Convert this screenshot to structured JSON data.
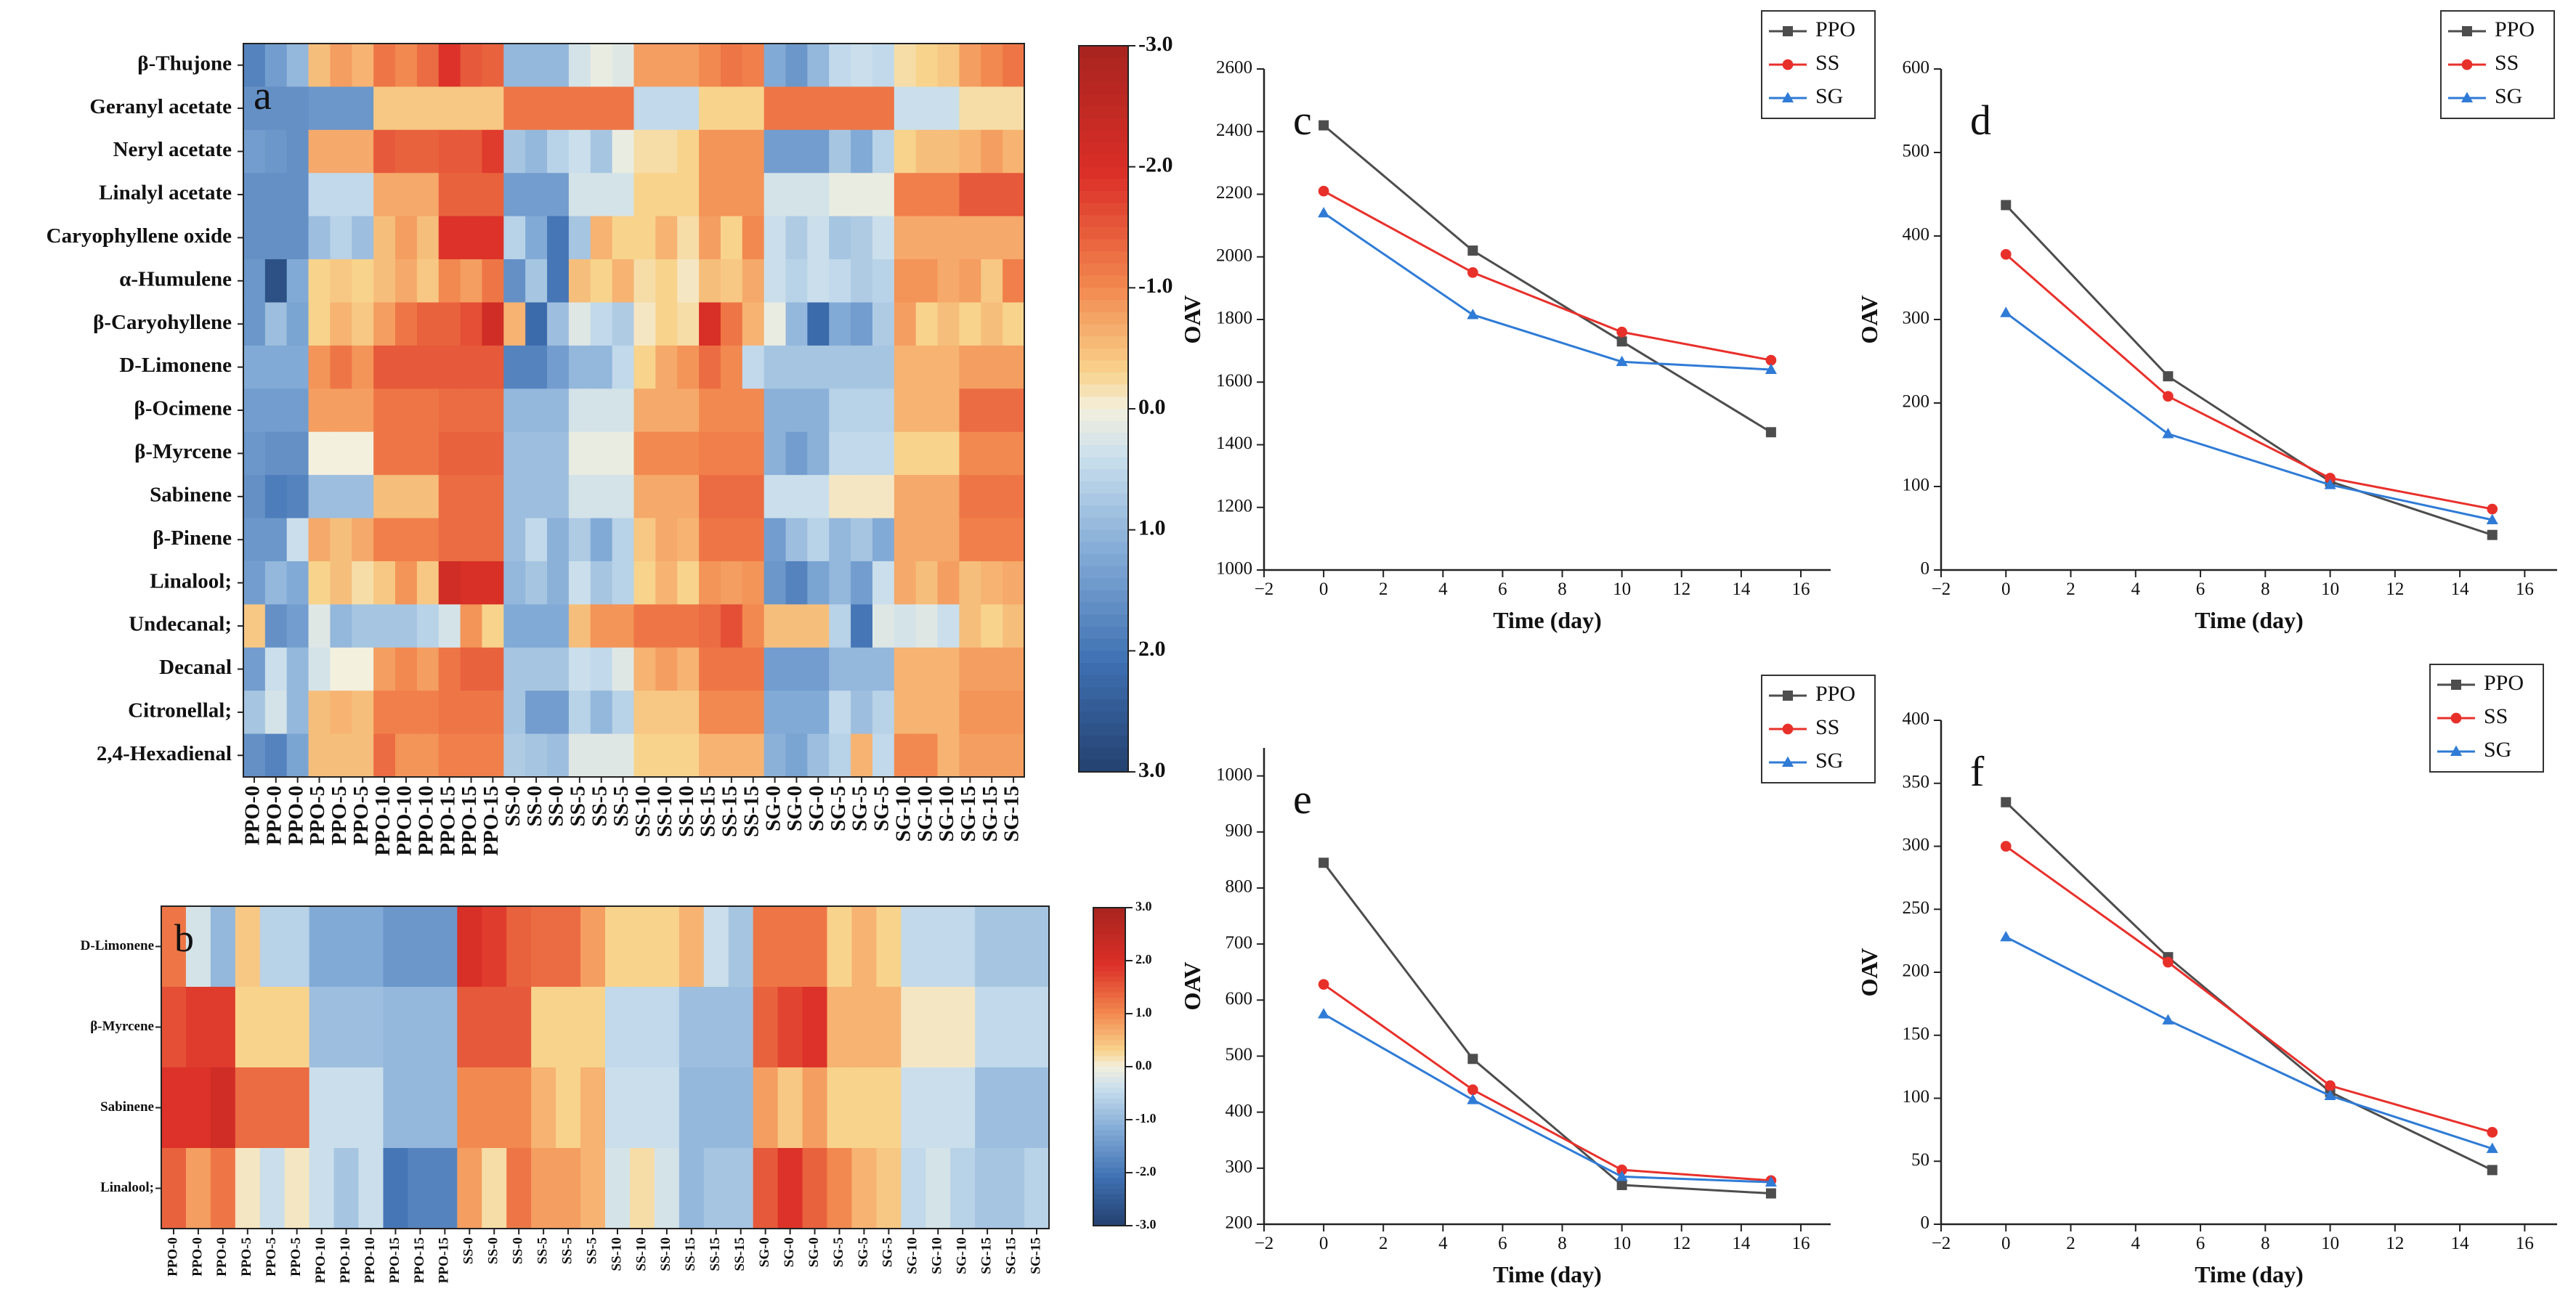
{
  "colors": {
    "ppo": "#4d4d4d",
    "ss": "#e8302b",
    "sg": "#2f7bd6",
    "cold": "#24406f",
    "mid": "#f3f0de",
    "hot": "#a8231f"
  },
  "chart_data": [
    {
      "id": "a",
      "type": "heatmap",
      "panel_label": "a",
      "rows": [
        "β-Thujone",
        "Geranyl acetate",
        "Neryl acetate",
        "Linalyl acetate",
        "Caryophyllene oxide",
        "α-Humulene",
        "β-Caryohyllene",
        "D-Limonene",
        "β-Ocimene",
        "β-Myrcene",
        "Sabinene",
        "β-Pinene",
        "Linalool;",
        "Undecanal;",
        "Decanal",
        "Citronellal;",
        "2,4-Hexadienal"
      ],
      "columns": [
        "PPO-0",
        "PPO-0",
        "PPO-0",
        "PPO-5",
        "PPO-5",
        "PPO-5",
        "PPO-10",
        "PPO-10",
        "PPO-10",
        "PPO-15",
        "PPO-15",
        "PPO-15",
        "SS-0",
        "SS-0",
        "SS-0",
        "SS-5",
        "SS-5",
        "SS-5",
        "SS-10",
        "SS-10",
        "SS-10",
        "SS-15",
        "SS-15",
        "SS-15",
        "SG-0",
        "SG-0",
        "SG-0",
        "SG-5",
        "SG-5",
        "SG-5",
        "SG-10",
        "SG-10",
        "SG-10",
        "SG-15",
        "SG-15",
        "SG-15"
      ],
      "colorbar_ticks": [
        "-3.0",
        "-2.0",
        "-1.0",
        "0.0",
        "1.0",
        "2.0",
        "3.0"
      ],
      "values": [
        [
          1.8,
          1.4,
          1.0,
          -0.5,
          -0.8,
          -0.6,
          -1.2,
          -1.0,
          -1.3,
          -1.9,
          -1.5,
          -1.4,
          1.0,
          1.0,
          1.0,
          0.3,
          0.1,
          0.2,
          -0.8,
          -0.8,
          -0.8,
          -1.0,
          -1.2,
          -1.1,
          1.2,
          1.5,
          1.0,
          0.5,
          0.4,
          0.5,
          -0.2,
          -0.3,
          -0.4,
          -0.8,
          -1.0,
          -1.2
        ],
        [
          1.6,
          1.6,
          1.6,
          1.5,
          1.5,
          1.5,
          -0.4,
          -0.4,
          -0.4,
          -0.4,
          -0.4,
          -0.4,
          -1.2,
          -1.2,
          -1.2,
          -1.2,
          -1.2,
          -1.2,
          0.5,
          0.5,
          0.5,
          -0.3,
          -0.3,
          -0.3,
          -1.2,
          -1.2,
          -1.2,
          -1.2,
          -1.2,
          -1.2,
          0.4,
          0.4,
          0.4,
          -0.2,
          -0.2,
          -0.2
        ],
        [
          1.4,
          1.5,
          1.6,
          -0.7,
          -0.7,
          -0.7,
          -1.5,
          -1.4,
          -1.4,
          -1.5,
          -1.5,
          -1.8,
          0.8,
          1.0,
          0.6,
          0.4,
          0.8,
          0.1,
          -0.2,
          -0.2,
          -0.3,
          -0.9,
          -0.9,
          -0.9,
          1.4,
          1.4,
          1.4,
          0.8,
          1.2,
          0.6,
          -0.3,
          -0.5,
          -0.5,
          -0.6,
          -0.8,
          -0.6
        ],
        [
          1.6,
          1.6,
          1.6,
          0.5,
          0.5,
          0.5,
          -0.7,
          -0.7,
          -0.7,
          -1.4,
          -1.4,
          -1.4,
          1.4,
          1.4,
          1.4,
          0.3,
          0.3,
          0.3,
          -0.3,
          -0.3,
          -0.3,
          -0.9,
          -0.9,
          -0.9,
          0.3,
          0.3,
          0.3,
          0.1,
          0.1,
          0.1,
          -1.1,
          -1.1,
          -1.1,
          -1.5,
          -1.5,
          -1.5
        ],
        [
          1.6,
          1.6,
          1.6,
          0.9,
          0.6,
          0.9,
          -0.5,
          -0.8,
          -0.5,
          -1.9,
          -1.9,
          -1.9,
          0.6,
          1.2,
          2.0,
          0.8,
          -0.6,
          -0.3,
          -0.3,
          -0.6,
          -0.2,
          -0.8,
          -0.3,
          -1.0,
          0.4,
          0.7,
          0.4,
          0.8,
          0.7,
          0.4,
          -0.7,
          -0.7,
          -0.7,
          -0.7,
          -0.7,
          -0.7
        ],
        [
          1.5,
          2.7,
          1.2,
          -0.3,
          -0.4,
          -0.3,
          -0.5,
          -0.7,
          -0.4,
          -1.0,
          -0.8,
          -1.2,
          1.6,
          0.8,
          2.0,
          -0.5,
          -0.3,
          -0.6,
          -0.2,
          -0.3,
          -0.1,
          -0.5,
          -0.4,
          -0.7,
          0.4,
          0.6,
          0.4,
          0.5,
          0.7,
          0.6,
          -0.9,
          -0.9,
          -0.7,
          -0.8,
          -0.4,
          -1.1
        ],
        [
          1.5,
          0.9,
          1.3,
          -0.3,
          -0.6,
          -0.4,
          -0.8,
          -1.2,
          -1.4,
          -1.4,
          -1.6,
          -2.2,
          -0.6,
          2.2,
          0.9,
          0.2,
          0.5,
          0.7,
          -0.1,
          -0.3,
          -0.2,
          -2.0,
          -1.2,
          -0.6,
          0.1,
          1.0,
          2.2,
          1.2,
          1.4,
          0.7,
          -0.8,
          -0.3,
          -0.5,
          -0.3,
          -0.5,
          -0.3
        ],
        [
          1.2,
          1.2,
          1.2,
          -0.9,
          -1.2,
          -0.9,
          -1.5,
          -1.5,
          -1.5,
          -1.5,
          -1.5,
          -1.5,
          1.8,
          1.8,
          1.4,
          1.0,
          1.0,
          0.5,
          -0.3,
          -0.7,
          -0.9,
          -1.3,
          -1.0,
          0.5,
          0.8,
          0.8,
          0.8,
          0.8,
          0.8,
          0.8,
          -0.6,
          -0.6,
          -0.6,
          -0.8,
          -0.8,
          -0.8
        ],
        [
          1.4,
          1.4,
          1.4,
          -0.8,
          -0.8,
          -0.8,
          -1.2,
          -1.2,
          -1.2,
          -1.3,
          -1.3,
          -1.3,
          1.0,
          1.0,
          1.0,
          0.3,
          0.3,
          0.3,
          -0.7,
          -0.7,
          -0.7,
          -1.0,
          -1.0,
          -1.0,
          1.1,
          1.1,
          1.1,
          0.6,
          0.6,
          0.6,
          -0.6,
          -0.6,
          -0.6,
          -1.3,
          -1.3,
          -1.3
        ],
        [
          1.5,
          1.6,
          1.6,
          0.0,
          0.0,
          0.0,
          -1.2,
          -1.2,
          -1.2,
          -1.4,
          -1.4,
          -1.4,
          0.9,
          0.9,
          0.9,
          0.1,
          0.1,
          0.1,
          -1.0,
          -1.0,
          -1.0,
          -1.1,
          -1.1,
          -1.1,
          1.1,
          1.4,
          1.1,
          0.5,
          0.5,
          0.5,
          -0.3,
          -0.3,
          -0.3,
          -1.0,
          -1.0,
          -1.0
        ],
        [
          1.6,
          1.9,
          1.8,
          0.9,
          0.9,
          0.9,
          -0.5,
          -0.5,
          -0.5,
          -1.3,
          -1.3,
          -1.3,
          0.9,
          0.9,
          0.9,
          0.3,
          0.3,
          0.3,
          -0.7,
          -0.7,
          -0.7,
          -1.3,
          -1.3,
          -1.3,
          0.4,
          0.4,
          0.4,
          -0.1,
          -0.1,
          -0.1,
          -0.7,
          -0.7,
          -0.7,
          -1.2,
          -1.2,
          -1.2
        ],
        [
          1.5,
          1.5,
          0.4,
          -0.7,
          -0.5,
          -0.7,
          -1.1,
          -1.1,
          -1.1,
          -1.3,
          -1.3,
          -1.3,
          0.9,
          0.5,
          1.1,
          0.7,
          1.2,
          0.6,
          -0.4,
          -0.7,
          -0.6,
          -1.2,
          -1.2,
          -1.2,
          1.4,
          0.9,
          0.6,
          1.0,
          0.8,
          1.2,
          -0.7,
          -0.7,
          -0.7,
          -1.1,
          -1.1,
          -1.1
        ],
        [
          1.4,
          1.0,
          1.2,
          -0.3,
          -0.5,
          -0.2,
          -0.4,
          -0.9,
          -0.4,
          -2.2,
          -2.0,
          -2.0,
          1.0,
          0.8,
          1.1,
          0.4,
          0.8,
          0.6,
          -0.3,
          -0.6,
          -0.3,
          -0.9,
          -0.8,
          -0.9,
          1.5,
          1.8,
          1.3,
          1.0,
          1.4,
          0.4,
          -0.7,
          -0.5,
          -0.8,
          -0.5,
          -0.6,
          -0.7
        ],
        [
          -0.4,
          1.6,
          1.4,
          0.2,
          1.0,
          0.8,
          0.8,
          0.8,
          0.6,
          0.3,
          -0.9,
          -0.3,
          1.2,
          1.2,
          1.2,
          -0.5,
          -0.9,
          -0.9,
          -1.2,
          -1.2,
          -1.2,
          -1.3,
          -1.6,
          -1.0,
          -0.5,
          -0.5,
          -0.5,
          0.6,
          2.0,
          0.2,
          0.3,
          0.2,
          0.4,
          -0.5,
          -0.3,
          -0.5
        ],
        [
          1.4,
          0.4,
          1.0,
          0.3,
          0.0,
          0.0,
          -0.8,
          -1.0,
          -0.8,
          -1.2,
          -1.4,
          -1.4,
          0.8,
          0.8,
          0.8,
          0.4,
          0.5,
          0.2,
          -0.6,
          -0.8,
          -0.6,
          -1.2,
          -1.2,
          -1.2,
          1.4,
          1.4,
          1.4,
          1.0,
          1.0,
          1.0,
          -0.6,
          -0.6,
          -0.6,
          -0.8,
          -0.8,
          -0.8
        ],
        [
          0.8,
          0.3,
          1.0,
          -0.5,
          -0.6,
          -0.5,
          -1.1,
          -1.1,
          -1.1,
          -1.2,
          -1.2,
          -1.2,
          0.8,
          1.4,
          1.4,
          0.6,
          1.0,
          0.6,
          -0.4,
          -0.4,
          -0.4,
          -1.0,
          -1.0,
          -1.0,
          1.2,
          1.2,
          1.2,
          0.5,
          0.9,
          0.6,
          -0.6,
          -0.6,
          -0.6,
          -0.9,
          -0.9,
          -0.9
        ],
        [
          1.6,
          1.8,
          1.3,
          -0.5,
          -0.5,
          -0.5,
          -1.3,
          -0.9,
          -0.9,
          -1.1,
          -1.1,
          -1.1,
          0.7,
          0.8,
          0.9,
          0.2,
          0.2,
          0.2,
          -0.3,
          -0.3,
          -0.3,
          -0.6,
          -0.6,
          -0.6,
          1.1,
          1.3,
          0.9,
          0.6,
          -0.6,
          0.5,
          -1.0,
          -1.0,
          -0.6,
          -0.8,
          -0.8,
          -0.8
        ]
      ]
    },
    {
      "id": "b",
      "type": "heatmap",
      "panel_label": "b",
      "rows": [
        "D-Limonene",
        "β-Myrcene",
        "Sabinene",
        "Linalool;"
      ],
      "columns": [
        "PPO-0",
        "PPO-0",
        "PPO-0",
        "PPO-5",
        "PPO-5",
        "PPO-5",
        "PPO-10",
        "PPO-10",
        "PPO-10",
        "PPO-15",
        "PPO-15",
        "PPO-15",
        "SS-0",
        "SS-0",
        "SS-0",
        "SS-5",
        "SS-5",
        "SS-5",
        "SS-10",
        "SS-10",
        "SS-10",
        "SS-15",
        "SS-15",
        "SS-15",
        "SG-0",
        "SG-0",
        "SG-0",
        "SG-5",
        "SG-5",
        "SG-5",
        "SG-10",
        "SG-10",
        "SG-10",
        "SG-15",
        "SG-15",
        "SG-15"
      ],
      "colorbar_ticks": [
        "3.0",
        "2.0",
        "1.0",
        "0.0",
        "-1.0",
        "-2.0",
        "-3.0"
      ],
      "values": [
        [
          1.2,
          -0.3,
          -1.0,
          0.4,
          -0.6,
          -0.6,
          -1.2,
          -1.2,
          -1.2,
          -1.5,
          -1.5,
          -1.5,
          2.0,
          1.8,
          1.4,
          1.3,
          1.3,
          0.8,
          0.3,
          0.3,
          0.3,
          0.6,
          -0.4,
          -0.8,
          1.2,
          1.2,
          1.2,
          0.3,
          0.6,
          0.3,
          -0.5,
          -0.5,
          -0.5,
          -0.8,
          -0.8,
          -0.8
        ],
        [
          1.6,
          1.8,
          1.8,
          0.3,
          0.3,
          0.3,
          -0.9,
          -0.9,
          -0.9,
          -1.0,
          -1.0,
          -1.0,
          1.5,
          1.5,
          1.5,
          0.3,
          0.3,
          0.3,
          -0.5,
          -0.5,
          -0.5,
          -0.9,
          -0.9,
          -0.9,
          1.4,
          1.7,
          1.9,
          0.6,
          0.6,
          0.6,
          0.1,
          0.1,
          0.1,
          -0.5,
          -0.5,
          -0.5
        ],
        [
          1.9,
          1.9,
          2.2,
          1.3,
          1.3,
          1.3,
          -0.4,
          -0.4,
          -0.4,
          -1.0,
          -1.0,
          -1.0,
          1.0,
          1.0,
          1.0,
          0.6,
          0.3,
          0.6,
          -0.4,
          -0.4,
          -0.4,
          -1.0,
          -1.0,
          -1.0,
          0.8,
          0.4,
          0.8,
          0.3,
          0.3,
          0.3,
          -0.4,
          -0.4,
          -0.4,
          -0.9,
          -0.9,
          -0.9
        ],
        [
          1.4,
          0.8,
          1.2,
          0.1,
          -0.4,
          0.1,
          -0.4,
          -0.8,
          -0.4,
          -2.0,
          -1.8,
          -1.8,
          0.8,
          0.2,
          1.2,
          0.8,
          0.8,
          0.6,
          -0.3,
          0.2,
          -0.3,
          -1.0,
          -0.8,
          -0.8,
          1.5,
          1.9,
          1.4,
          1.0,
          0.6,
          0.4,
          -0.5,
          -0.3,
          -0.6,
          -0.8,
          -0.8,
          -0.6
        ]
      ]
    },
    {
      "id": "c",
      "type": "line",
      "panel_label": "c",
      "x": [
        0,
        5,
        10,
        15
      ],
      "series": [
        {
          "name": "PPO",
          "values": [
            2420,
            2020,
            1730,
            1440
          ]
        },
        {
          "name": "SS",
          "values": [
            2210,
            1950,
            1760,
            1670
          ]
        },
        {
          "name": "SG",
          "values": [
            2140,
            1815,
            1665,
            1640
          ]
        }
      ],
      "xlabel": "Time (day)",
      "ylabel": "OAV",
      "xlim": [
        -2,
        17
      ],
      "ylim": [
        1000,
        2600
      ],
      "xticks": [
        -2,
        0,
        2,
        4,
        6,
        8,
        10,
        12,
        14,
        16
      ],
      "yticks": [
        1000,
        1200,
        1400,
        1600,
        1800,
        2000,
        2200,
        2400,
        2600
      ]
    },
    {
      "id": "d",
      "type": "line",
      "panel_label": "d",
      "x": [
        0,
        5,
        10,
        15
      ],
      "series": [
        {
          "name": "PPO",
          "values": [
            437,
            232,
            106,
            42
          ]
        },
        {
          "name": "SS",
          "values": [
            378,
            208,
            110,
            73
          ]
        },
        {
          "name": "SG",
          "values": [
            308,
            163,
            102,
            60
          ]
        }
      ],
      "xlabel": "Time (day)",
      "ylabel": "OAV",
      "xlim": [
        -2,
        17
      ],
      "ylim": [
        0,
        600
      ],
      "xticks": [
        -2,
        0,
        2,
        4,
        6,
        8,
        10,
        12,
        14,
        16
      ],
      "yticks": [
        0,
        100,
        200,
        300,
        400,
        500,
        600
      ]
    },
    {
      "id": "e",
      "type": "line",
      "panel_label": "e",
      "x": [
        0,
        5,
        10,
        15
      ],
      "series": [
        {
          "name": "PPO",
          "values": [
            845,
            495,
            270,
            255
          ]
        },
        {
          "name": "SS",
          "values": [
            628,
            440,
            297,
            278
          ]
        },
        {
          "name": "SG",
          "values": [
            575,
            422,
            285,
            275
          ]
        }
      ],
      "xlabel": "Time (day)",
      "ylabel": "OAV",
      "xlim": [
        -2,
        17
      ],
      "ylim": [
        200,
        1050
      ],
      "xticks": [
        -2,
        0,
        2,
        4,
        6,
        8,
        10,
        12,
        14,
        16
      ],
      "yticks": [
        200,
        300,
        400,
        500,
        600,
        700,
        800,
        900,
        1000
      ]
    },
    {
      "id": "f",
      "type": "line",
      "panel_label": "f",
      "x": [
        0,
        5,
        10,
        15
      ],
      "series": [
        {
          "name": "PPO",
          "values": [
            335,
            212,
            105,
            43
          ]
        },
        {
          "name": "SS",
          "values": [
            300,
            208,
            110,
            73
          ]
        },
        {
          "name": "SG",
          "values": [
            228,
            162,
            102,
            60
          ]
        }
      ],
      "xlabel": "Time (day)",
      "ylabel": "OAV",
      "xlim": [
        -2,
        17
      ],
      "ylim": [
        0,
        400
      ],
      "xticks": [
        -2,
        0,
        2,
        4,
        6,
        8,
        10,
        12,
        14,
        16
      ],
      "yticks": [
        0,
        50,
        100,
        150,
        200,
        250,
        300,
        350,
        400
      ]
    }
  ]
}
